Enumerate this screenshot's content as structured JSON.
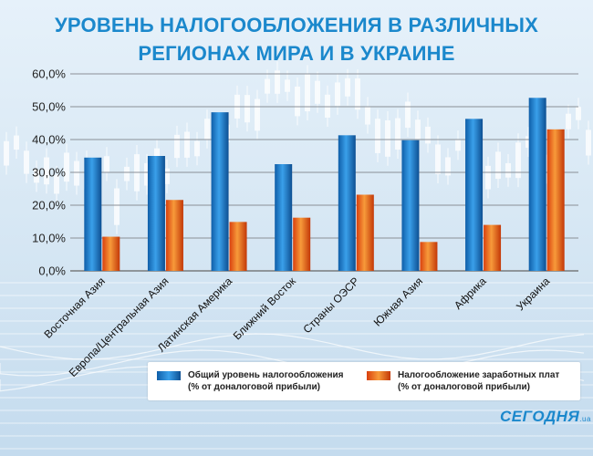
{
  "title": "УРОВЕНЬ НАЛОГООБЛОЖЕНИЯ В РАЗЛИЧНЫХ РЕГИОНАХ МИРА И В УКРАИНЕ",
  "logo": {
    "text": "СЕГОДНЯ",
    "suffix": ".ua"
  },
  "colors": {
    "series1": "#1f7fcf",
    "series2": "#e8541b",
    "title": "#1b88cc"
  },
  "chart_data": {
    "type": "bar",
    "title": "УРОВЕНЬ НАЛОГООБЛОЖЕНИЯ В РАЗЛИЧНЫХ РЕГИОНАХ МИРА И В УКРАИНЕ",
    "categories": [
      "Восточная Азия",
      "Европа/Центральная Азия",
      "Латинская Америка",
      "Ближний Восток",
      "Страны ОЭСР",
      "Южная Азия",
      "Африка",
      "Украина"
    ],
    "series": [
      {
        "name": "Общий уровень налогообложения (% от доналоговой прибыли)",
        "values": [
          34.5,
          35.0,
          48.3,
          32.5,
          41.3,
          39.8,
          46.3,
          52.7
        ]
      },
      {
        "name": "Налогообложение заработных плат (% от доналоговой прибыли)",
        "values": [
          10.4,
          21.6,
          14.9,
          16.2,
          23.2,
          8.8,
          14.0,
          43.1
        ]
      }
    ],
    "ylim": [
      0,
      60
    ],
    "yticks": [
      "0,0%",
      "10,0%",
      "20,0%",
      "30,0%",
      "40,0%",
      "50,0%",
      "60,0%"
    ],
    "xlabel": "",
    "ylabel": "",
    "grid": true,
    "legend": "bottom"
  },
  "legend": {
    "item1_line1": "Общий уровень налогообложения",
    "item1_line2": "(% от доналоговой прибыли)",
    "item2_line1": "Налогообложение заработных плат",
    "item2_line2": "(% от доналоговой прибыли)"
  }
}
